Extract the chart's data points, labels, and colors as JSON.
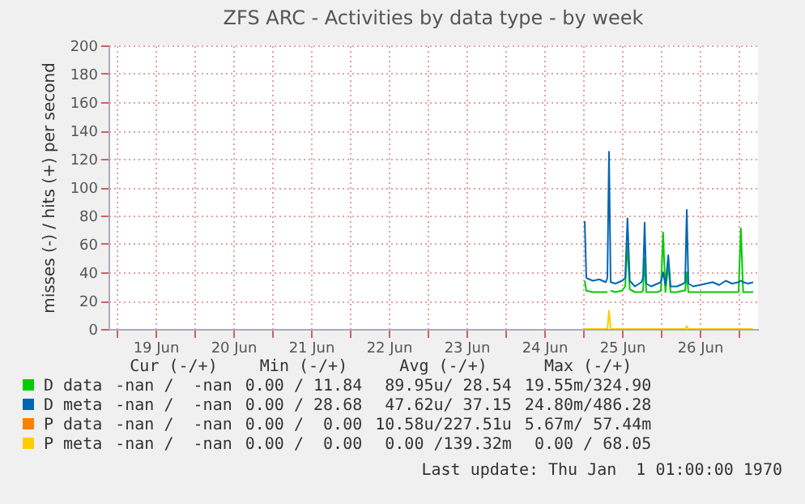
{
  "chart_data": {
    "type": "line",
    "title": "ZFS ARC - Activities by data type - by week",
    "ylabel": "misses (-) / hits (+) per second",
    "x": [
      "--06-25T00:30",
      "--06-25T01:00",
      "--06-25T03:00",
      "--06-25T05:00",
      "--06-25T07:00",
      "--06-25T07:30",
      "--06-25T08:00",
      "--06-25T08:30",
      "--06-25T10:00",
      "--06-25T12:00",
      "--06-25T13:00",
      "--06-25T13:42",
      "--06-25T14:24",
      "--06-25T16:00",
      "--06-25T18:00",
      "--06-25T18:30",
      "--06-25T19:00",
      "--06-25T19:30",
      "--06-25T21:00",
      "--06-25T23:00",
      "--06-26T00:00",
      "--06-26T00:42",
      "--06-26T01:24",
      "--06-26T02:18",
      "--06-26T03:00",
      "--06-26T05:00",
      "--06-26T07:00",
      "--06-26T07:30",
      "--06-26T08:00",
      "--06-26T08:30",
      "--06-26T10:00",
      "--06-26T12:00",
      "--06-26T14:00",
      "--06-26T16:00",
      "--06-26T18:00",
      "--06-26T20:00",
      "--06-26T22:00",
      "--06-27T00:00",
      "--06-27T00:42",
      "--06-27T01:24",
      "--06-27T03:00",
      "--06-27T04:30"
    ],
    "series": [
      {
        "name": "D data",
        "color": "#00cc00",
        "values": [
          34,
          27,
          26,
          26,
          26,
          26,
          null,
          27,
          26,
          27,
          30,
          60,
          28,
          26,
          26,
          27,
          50,
          26,
          26,
          26,
          27,
          68,
          26,
          45,
          26,
          26,
          27,
          27,
          40,
          26,
          26,
          26,
          26,
          26,
          26,
          26,
          26,
          26,
          71,
          26,
          26,
          26
        ]
      },
      {
        "name": "D meta",
        "color": "#0066b3",
        "values": [
          76,
          36,
          34,
          35,
          33,
          36,
          125,
          33,
          32,
          34,
          36,
          78,
          34,
          30,
          33,
          36,
          75,
          32,
          30,
          32,
          33,
          40,
          31,
          52,
          30,
          30,
          32,
          33,
          84,
          32,
          30,
          31,
          32,
          33,
          31,
          34,
          32,
          33,
          34,
          33,
          32,
          33
        ]
      },
      {
        "name": "P data",
        "color": "#ff8000",
        "values": [
          null,
          null,
          null,
          null,
          null,
          null,
          null,
          null,
          null,
          null,
          null,
          null,
          null,
          null,
          null,
          null,
          null,
          null,
          null,
          null,
          null,
          null,
          null,
          null,
          null,
          null,
          null,
          null,
          null,
          null,
          null,
          null,
          null,
          null,
          null,
          null,
          null,
          null,
          null,
          null,
          null,
          null
        ]
      },
      {
        "name": "P meta",
        "color": "#ffcc00",
        "values": [
          0,
          0,
          0,
          0,
          0,
          0,
          13,
          0,
          0,
          0,
          0,
          0,
          0,
          0,
          0,
          0,
          0,
          0,
          0,
          0,
          0,
          0,
          0,
          0,
          0,
          0,
          0,
          0,
          2,
          0,
          0,
          0,
          0,
          0,
          0,
          0,
          0,
          0,
          0,
          0,
          0,
          0
        ]
      }
    ],
    "xlim": [
      "--06-18T21:30",
      "--06-27T06:00"
    ],
    "xticks": [
      {
        "value": "--06-19T00:00",
        "label": null
      },
      {
        "value": "--06-19T12:00",
        "label": "19 Jun"
      },
      {
        "value": "--06-20T00:00",
        "label": null
      },
      {
        "value": "--06-20T12:00",
        "label": "20 Jun"
      },
      {
        "value": "--06-21T00:00",
        "label": null
      },
      {
        "value": "--06-21T12:00",
        "label": "21 Jun"
      },
      {
        "value": "--06-22T00:00",
        "label": null
      },
      {
        "value": "--06-22T12:00",
        "label": "22 Jun"
      },
      {
        "value": "--06-23T00:00",
        "label": null
      },
      {
        "value": "--06-23T12:00",
        "label": "23 Jun"
      },
      {
        "value": "--06-24T00:00",
        "label": null
      },
      {
        "value": "--06-24T12:00",
        "label": "24 Jun"
      },
      {
        "value": "--06-25T00:00",
        "label": null
      },
      {
        "value": "--06-25T12:00",
        "label": "25 Jun"
      },
      {
        "value": "--06-26T00:00",
        "label": null
      },
      {
        "value": "--06-26T12:00",
        "label": "26 Jun"
      },
      {
        "value": "--06-27T00:00",
        "label": null
      }
    ],
    "ylim": [
      0,
      200
    ],
    "yticks": [
      0,
      20,
      40,
      60,
      80,
      100,
      120,
      140,
      160,
      180,
      200
    ],
    "grid": true,
    "legend": "bottom",
    "annotations": [
      "Cur (-/+)",
      "Min (-/+)",
      "Avg (-/+)",
      "Max (-/+)",
      "-nan /  -nan",
      "0.00 / 11.84",
      "89.95u/ 28.54",
      "19.55m/324.90",
      "-nan /  -nan",
      "0.00 / 28.68",
      "47.62u/ 37.15",
      "24.80m/486.28",
      "-nan /  -nan",
      "0.00 /  0.00",
      "10.58u/227.51u",
      "5.67m/ 57.44m",
      "-nan /  -nan",
      "0.00 /  0.00",
      "0.00 /139.32m",
      "0.00 / 68.05",
      "Last update: Thu Jan  1 01:00:00 1970"
    ]
  }
}
